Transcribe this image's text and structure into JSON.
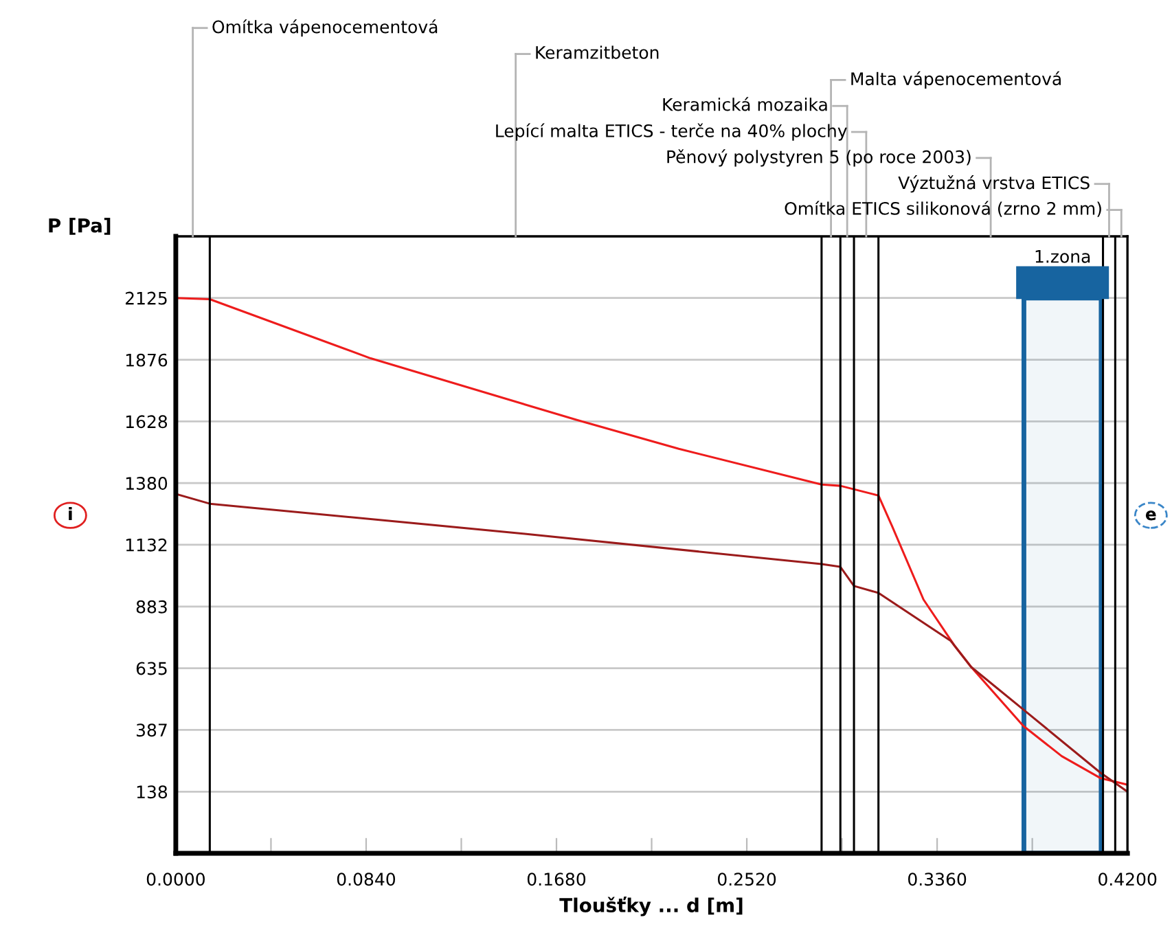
{
  "chart_data": {
    "type": "line",
    "xlabel": "Tloušťky ... d [m]",
    "ylabel": "P [Pa]",
    "xlim": [
      0,
      0.42
    ],
    "ylim": [
      -110,
      2373
    ],
    "xticks": [
      {
        "value": 0,
        "label": "0.0000"
      },
      {
        "value": 0.042,
        "label": null
      },
      {
        "value": 0.084,
        "label": "0.0840"
      },
      {
        "value": 0.126,
        "label": null
      },
      {
        "value": 0.168,
        "label": "0.1680"
      },
      {
        "value": 0.21,
        "label": null
      },
      {
        "value": 0.252,
        "label": "0.2520"
      },
      {
        "value": 0.294,
        "label": null
      },
      {
        "value": 0.336,
        "label": "0.3360"
      },
      {
        "value": 0.378,
        "label": null
      },
      {
        "value": 0.42,
        "label": "0.4200"
      }
    ],
    "yticks": [
      138,
      387,
      635,
      883,
      1132,
      1380,
      1628,
      1876,
      2125
    ],
    "grid": "y",
    "legend": false,
    "marker": "none",
    "line_style": "solid",
    "series": [
      {
        "color": "#ee1c1c",
        "x": [
          0,
          0.015,
          0.086,
          0.177,
          0.222,
          0.285,
          0.2933,
          0.3101,
          0.316,
          0.33,
          0.3435,
          0.351,
          0.374,
          0.391,
          0.408,
          0.42
        ],
        "values": [
          2125,
          2120,
          1882,
          1634,
          1518,
          1374,
          1369,
          1330,
          1209,
          911,
          728,
          640,
          403,
          281,
          193,
          166
        ]
      },
      {
        "color": "#9b1b1b",
        "x": [
          0,
          0.015,
          0.154,
          0.285,
          0.2933,
          0.2993,
          0.3101,
          0.342,
          0.351,
          0.374,
          0.408,
          0.42
        ],
        "values": [
          1336,
          1297,
          1176,
          1054,
          1043,
          966,
          938,
          745,
          640,
          469,
          215,
          138
        ]
      }
    ],
    "ref_lines": [
      {
        "axis": "x",
        "value": 0.015,
        "color": "#000000"
      },
      {
        "axis": "x",
        "value": 0.285,
        "color": "#000000"
      },
      {
        "axis": "x",
        "value": 0.2933,
        "color": "#000000"
      },
      {
        "axis": "x",
        "value": 0.2993,
        "color": "#000000"
      },
      {
        "axis": "x",
        "value": 0.3101,
        "color": "#000000"
      },
      {
        "axis": "x",
        "value": 0.4092,
        "color": "#000000"
      },
      {
        "axis": "x",
        "value": 0.4146,
        "color": "#000000"
      }
    ],
    "bands": [
      {
        "axis": "x",
        "from": 0.3743,
        "to": 0.4084,
        "label": "1.zona",
        "color": "#1764a0"
      }
    ],
    "annotations": [
      "Omítka vápenocementová",
      "Keramzitbeton",
      "Malta vápenocementová",
      "Keramická mozaika",
      "Lepící malta ETICS - terče na 40% plochy",
      "Pěnový polystyren 5 (po roce 2003)",
      "Výztužná vrstva ETICS",
      "Omítka ETICS silikonová (zrno 2 mm)",
      "i",
      "e"
    ]
  }
}
